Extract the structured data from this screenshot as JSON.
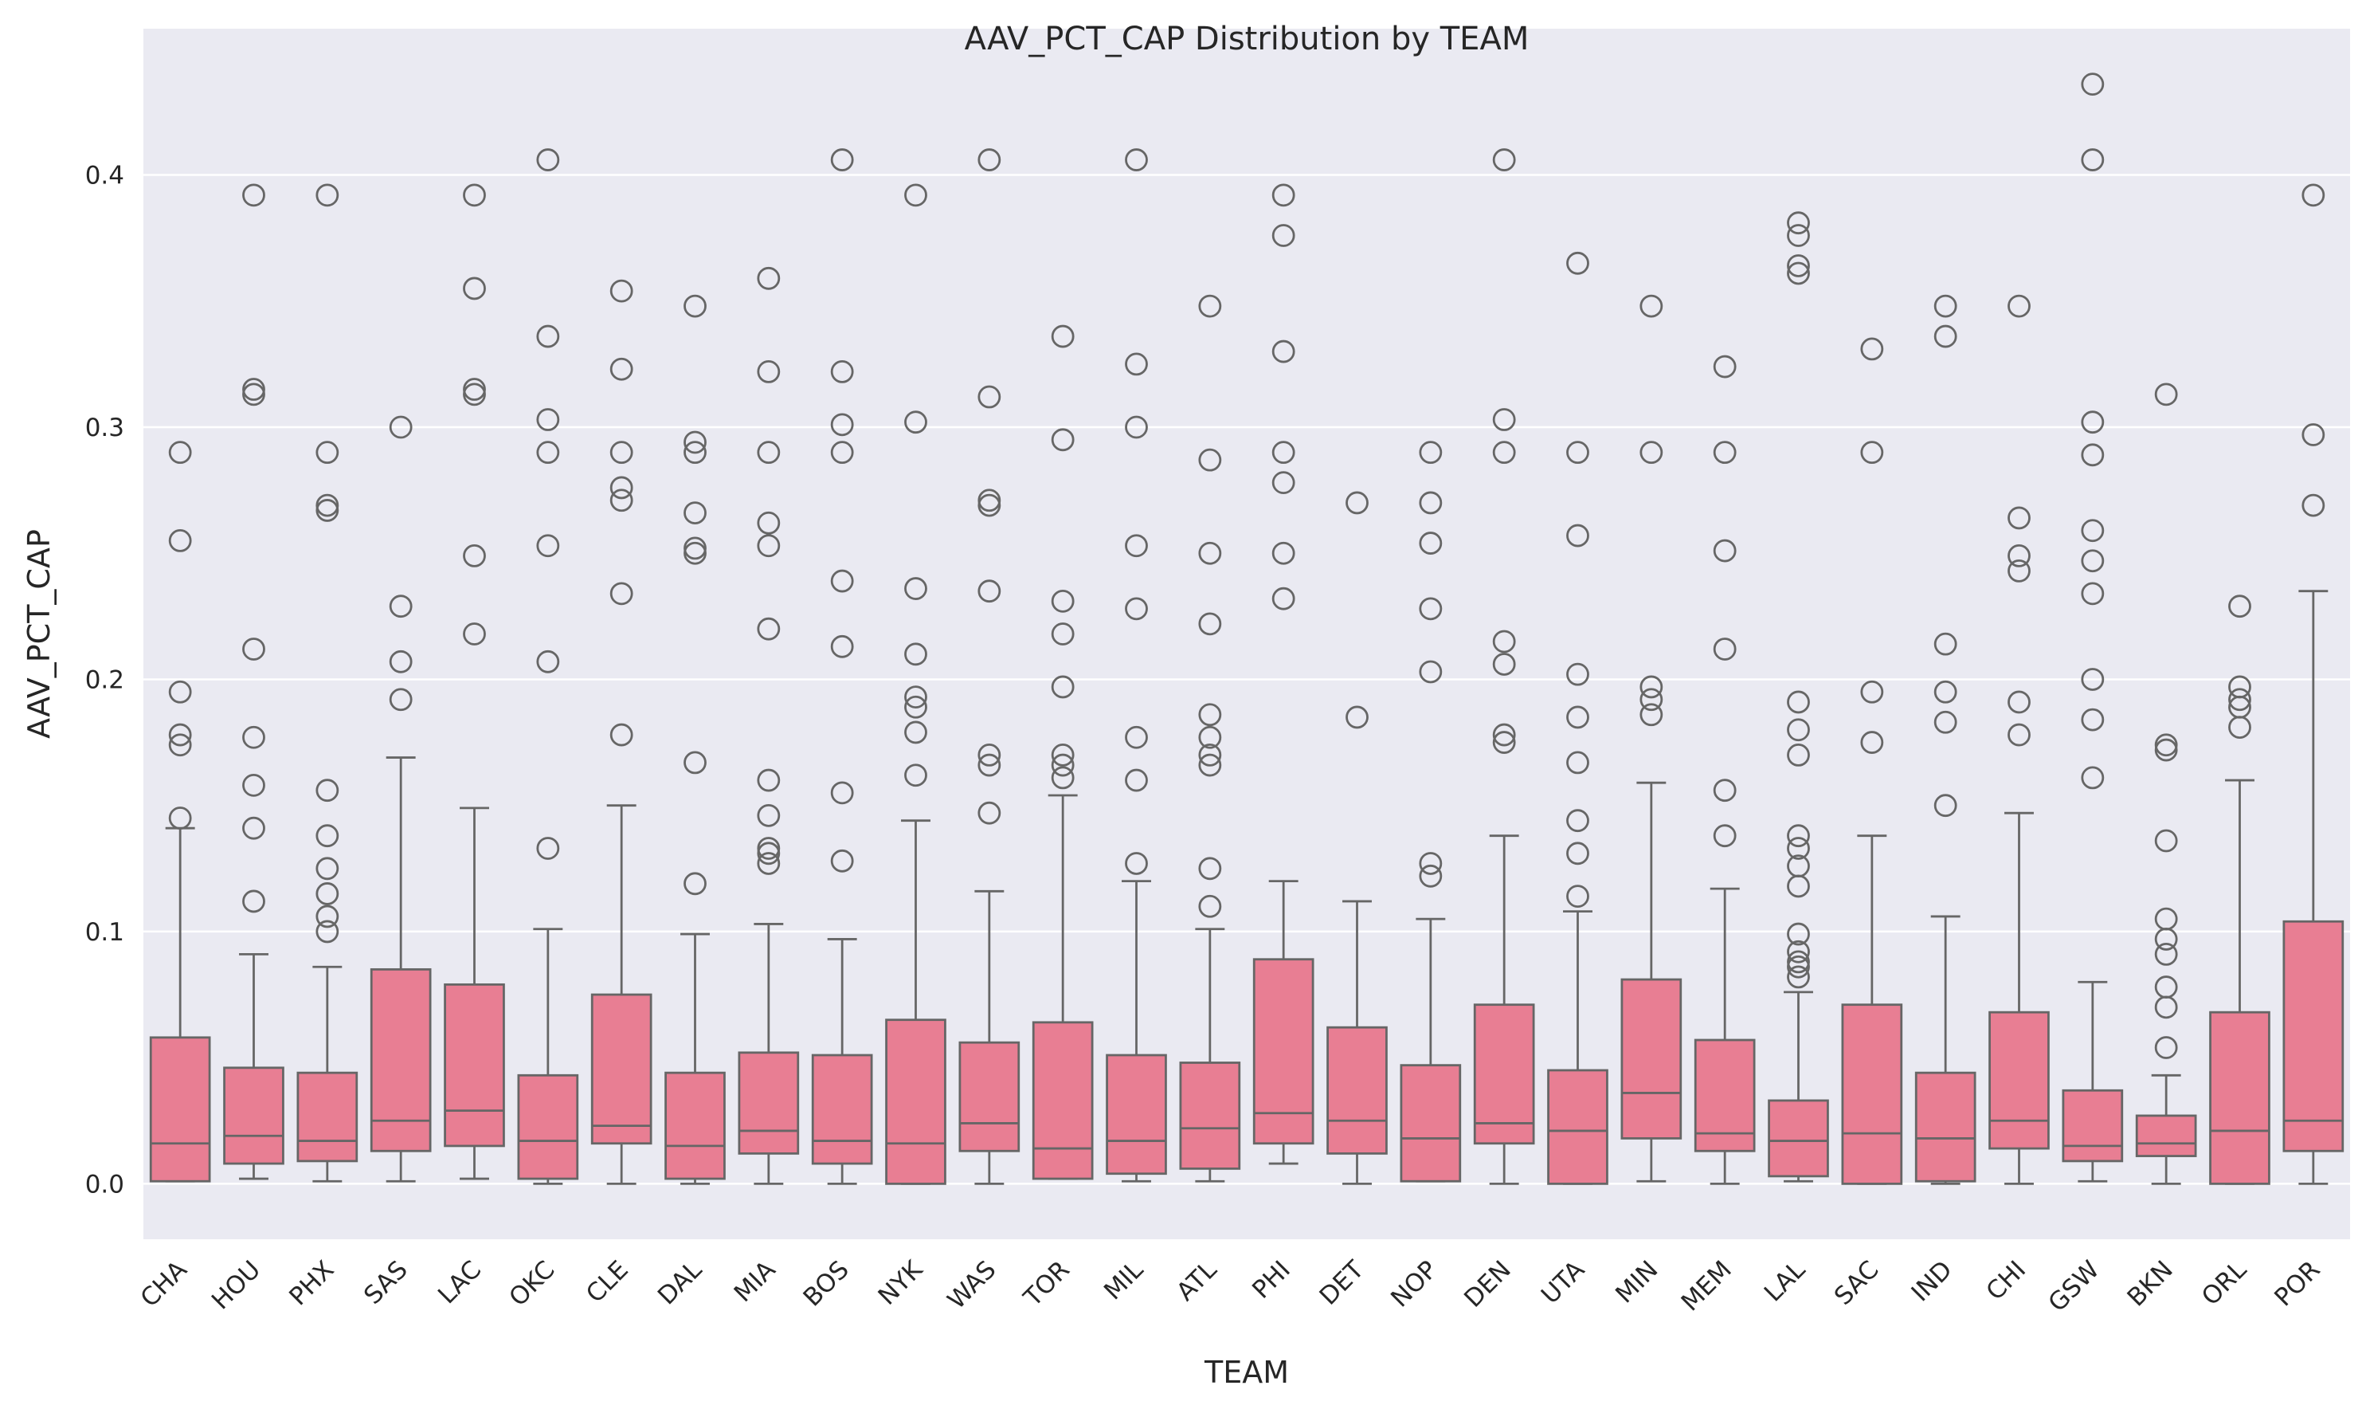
{
  "chart_data": {
    "type": "box",
    "title": "AAV_PCT_CAP Distribution by TEAM",
    "xlabel": "TEAM",
    "ylabel": "AAV_PCT_CAP",
    "ylim": [
      -0.022,
      0.458
    ],
    "yticks": [
      0.0,
      0.1,
      0.2,
      0.3,
      0.4
    ],
    "ytick_labels": [
      "0.0",
      "0.1",
      "0.2",
      "0.3",
      "0.4"
    ],
    "grid": true,
    "box_color": "#e87e93",
    "line_color": "#666666",
    "background_color": "#eaeaf2",
    "categories": [
      "CHA",
      "HOU",
      "PHX",
      "SAS",
      "LAC",
      "OKC",
      "CLE",
      "DAL",
      "MIA",
      "BOS",
      "NYK",
      "WAS",
      "TOR",
      "MIL",
      "ATL",
      "PHI",
      "DET",
      "NOP",
      "DEN",
      "UTA",
      "MIN",
      "MEM",
      "LAL",
      "SAC",
      "IND",
      "CHI",
      "GSW",
      "BKN",
      "ORL",
      "POR"
    ],
    "boxes": [
      {
        "whislo": 0.001,
        "q1": 0.001,
        "med": 0.016,
        "q3": 0.058,
        "whishi": 0.141,
        "fliers": [
          0.145,
          0.174,
          0.178,
          0.195,
          0.255,
          0.29
        ]
      },
      {
        "whislo": 0.002,
        "q1": 0.008,
        "med": 0.019,
        "q3": 0.046,
        "whishi": 0.091,
        "fliers": [
          0.112,
          0.141,
          0.158,
          0.177,
          0.212,
          0.313,
          0.315,
          0.392
        ]
      },
      {
        "whislo": 0.001,
        "q1": 0.009,
        "med": 0.017,
        "q3": 0.044,
        "whishi": 0.086,
        "fliers": [
          0.1,
          0.106,
          0.115,
          0.125,
          0.138,
          0.156,
          0.267,
          0.269,
          0.29,
          0.392
        ]
      },
      {
        "whislo": 0.001,
        "q1": 0.013,
        "med": 0.025,
        "q3": 0.085,
        "whishi": 0.169,
        "fliers": [
          0.192,
          0.207,
          0.229,
          0.3
        ]
      },
      {
        "whislo": 0.002,
        "q1": 0.015,
        "med": 0.029,
        "q3": 0.079,
        "whishi": 0.149,
        "fliers": [
          0.218,
          0.249,
          0.313,
          0.315,
          0.355,
          0.392
        ]
      },
      {
        "whislo": 0.0,
        "q1": 0.002,
        "med": 0.017,
        "q3": 0.043,
        "whishi": 0.101,
        "fliers": [
          0.133,
          0.207,
          0.253,
          0.29,
          0.303,
          0.336,
          0.406
        ]
      },
      {
        "whislo": 0.0,
        "q1": 0.016,
        "med": 0.023,
        "q3": 0.075,
        "whishi": 0.15,
        "fliers": [
          0.178,
          0.234,
          0.271,
          0.276,
          0.29,
          0.323,
          0.354
        ]
      },
      {
        "whislo": 0.0,
        "q1": 0.002,
        "med": 0.015,
        "q3": 0.044,
        "whishi": 0.099,
        "fliers": [
          0.119,
          0.167,
          0.25,
          0.252,
          0.266,
          0.29,
          0.294,
          0.348
        ]
      },
      {
        "whislo": 0.0,
        "q1": 0.012,
        "med": 0.021,
        "q3": 0.052,
        "whishi": 0.103,
        "fliers": [
          0.127,
          0.131,
          0.133,
          0.146,
          0.16,
          0.22,
          0.253,
          0.262,
          0.29,
          0.322,
          0.359
        ]
      },
      {
        "whislo": 0.0,
        "q1": 0.008,
        "med": 0.017,
        "q3": 0.051,
        "whishi": 0.097,
        "fliers": [
          0.128,
          0.155,
          0.213,
          0.239,
          0.29,
          0.301,
          0.322,
          0.406
        ]
      },
      {
        "whislo": 0.0,
        "q1": 0.0,
        "med": 0.016,
        "q3": 0.065,
        "whishi": 0.144,
        "fliers": [
          0.162,
          0.179,
          0.189,
          0.193,
          0.21,
          0.236,
          0.302,
          0.392
        ]
      },
      {
        "whislo": 0.0,
        "q1": 0.013,
        "med": 0.024,
        "q3": 0.056,
        "whishi": 0.116,
        "fliers": [
          0.147,
          0.166,
          0.17,
          0.235,
          0.269,
          0.271,
          0.312,
          0.406
        ]
      },
      {
        "whislo": 0.002,
        "q1": 0.002,
        "med": 0.014,
        "q3": 0.064,
        "whishi": 0.154,
        "fliers": [
          0.161,
          0.166,
          0.17,
          0.197,
          0.218,
          0.231,
          0.295,
          0.336
        ]
      },
      {
        "whislo": 0.001,
        "q1": 0.004,
        "med": 0.017,
        "q3": 0.051,
        "whishi": 0.12,
        "fliers": [
          0.127,
          0.16,
          0.177,
          0.228,
          0.253,
          0.3,
          0.325,
          0.406
        ]
      },
      {
        "whislo": 0.001,
        "q1": 0.006,
        "med": 0.022,
        "q3": 0.048,
        "whishi": 0.101,
        "fliers": [
          0.11,
          0.125,
          0.166,
          0.17,
          0.177,
          0.186,
          0.222,
          0.25,
          0.287,
          0.348
        ]
      },
      {
        "whislo": 0.008,
        "q1": 0.016,
        "med": 0.028,
        "q3": 0.089,
        "whishi": 0.12,
        "fliers": [
          0.232,
          0.25,
          0.278,
          0.29,
          0.33,
          0.376,
          0.392
        ]
      },
      {
        "whislo": 0.0,
        "q1": 0.012,
        "med": 0.025,
        "q3": 0.062,
        "whishi": 0.112,
        "fliers": [
          0.185,
          0.27
        ]
      },
      {
        "whislo": 0.001,
        "q1": 0.001,
        "med": 0.018,
        "q3": 0.047,
        "whishi": 0.105,
        "fliers": [
          0.122,
          0.127,
          0.203,
          0.228,
          0.254,
          0.27,
          0.29
        ]
      },
      {
        "whislo": 0.0,
        "q1": 0.016,
        "med": 0.024,
        "q3": 0.071,
        "whishi": 0.138,
        "fliers": [
          0.175,
          0.178,
          0.206,
          0.215,
          0.29,
          0.303,
          0.406
        ]
      },
      {
        "whislo": 0.0,
        "q1": 0.0,
        "med": 0.021,
        "q3": 0.045,
        "whishi": 0.108,
        "fliers": [
          0.114,
          0.131,
          0.144,
          0.167,
          0.185,
          0.202,
          0.257,
          0.29,
          0.365
        ]
      },
      {
        "whislo": 0.001,
        "q1": 0.018,
        "med": 0.036,
        "q3": 0.081,
        "whishi": 0.159,
        "fliers": [
          0.186,
          0.192,
          0.197,
          0.29,
          0.348
        ]
      },
      {
        "whislo": 0.0,
        "q1": 0.013,
        "med": 0.02,
        "q3": 0.057,
        "whishi": 0.117,
        "fliers": [
          0.138,
          0.156,
          0.212,
          0.251,
          0.29,
          0.324
        ]
      },
      {
        "whislo": 0.001,
        "q1": 0.003,
        "med": 0.017,
        "q3": 0.033,
        "whishi": 0.076,
        "fliers": [
          0.082,
          0.086,
          0.088,
          0.092,
          0.099,
          0.118,
          0.126,
          0.133,
          0.138,
          0.17,
          0.18,
          0.191,
          0.361,
          0.364,
          0.376,
          0.381
        ]
      },
      {
        "whislo": 0.0,
        "q1": 0.0,
        "med": 0.02,
        "q3": 0.071,
        "whishi": 0.138,
        "fliers": [
          0.175,
          0.195,
          0.29,
          0.331
        ]
      },
      {
        "whislo": 0.0,
        "q1": 0.001,
        "med": 0.018,
        "q3": 0.044,
        "whishi": 0.106,
        "fliers": [
          0.15,
          0.183,
          0.195,
          0.214,
          0.336,
          0.348
        ]
      },
      {
        "whislo": 0.0,
        "q1": 0.014,
        "med": 0.025,
        "q3": 0.068,
        "whishi": 0.147,
        "fliers": [
          0.178,
          0.191,
          0.243,
          0.249,
          0.264,
          0.348
        ]
      },
      {
        "whislo": 0.001,
        "q1": 0.009,
        "med": 0.015,
        "q3": 0.037,
        "whishi": 0.08,
        "fliers": [
          0.161,
          0.184,
          0.2,
          0.234,
          0.247,
          0.259,
          0.289,
          0.302,
          0.406,
          0.436
        ]
      },
      {
        "whislo": 0.0,
        "q1": 0.011,
        "med": 0.016,
        "q3": 0.027,
        "whishi": 0.043,
        "fliers": [
          0.054,
          0.07,
          0.078,
          0.091,
          0.097,
          0.105,
          0.136,
          0.172,
          0.174,
          0.313
        ]
      },
      {
        "whislo": 0.0,
        "q1": 0.0,
        "med": 0.021,
        "q3": 0.068,
        "whishi": 0.16,
        "fliers": [
          0.181,
          0.189,
          0.192,
          0.197,
          0.229
        ]
      },
      {
        "whislo": 0.0,
        "q1": 0.013,
        "med": 0.025,
        "q3": 0.104,
        "whishi": 0.235,
        "fliers": [
          0.269,
          0.297,
          0.392
        ]
      }
    ]
  }
}
